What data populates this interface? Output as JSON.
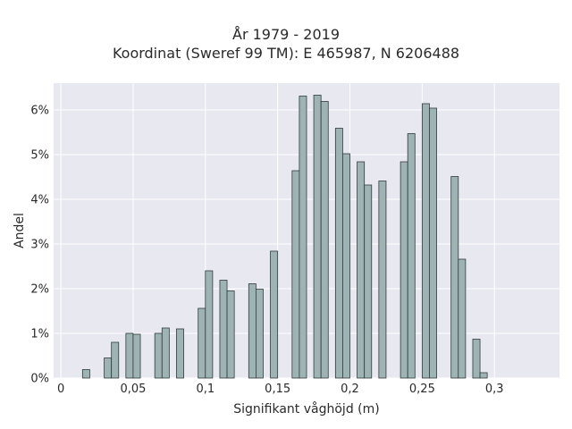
{
  "chart_data": {
    "type": "bar",
    "title": "År 1979 - 2019",
    "subtitle": "Koordinat (Sweref 99 TM): E 465987, N 6206488",
    "xlabel": "Signifikant våghöjd (m)",
    "ylabel": "Andel",
    "xlim": [
      -0.005,
      0.345
    ],
    "ylim": [
      0,
      0.066
    ],
    "bin_width": 0.005,
    "x_ticks": [
      0,
      0.05,
      0.1,
      0.15,
      0.2,
      0.25,
      0.3
    ],
    "x_tick_labels": [
      "0",
      "0,05",
      "0,1",
      "0,15",
      "0,2",
      "0,25",
      "0,3"
    ],
    "y_ticks": [
      0,
      0.01,
      0.02,
      0.03,
      0.04,
      0.05,
      0.06
    ],
    "y_tick_labels": [
      "0%",
      "1%",
      "2%",
      "3%",
      "4%",
      "5%",
      "6%"
    ],
    "grid": true,
    "colors": {
      "bar_fill": "#9eb4b4",
      "bar_edge": "#2f3b3b",
      "plot_bg": "#e8e8f0",
      "grid": "#ffffff"
    },
    "bins": [
      {
        "x": 0.0175,
        "value": 0.0019
      },
      {
        "x": 0.0325,
        "value": 0.0045
      },
      {
        "x": 0.0375,
        "value": 0.008
      },
      {
        "x": 0.0475,
        "value": 0.01
      },
      {
        "x": 0.0525,
        "value": 0.0098
      },
      {
        "x": 0.0675,
        "value": 0.01
      },
      {
        "x": 0.0725,
        "value": 0.0112
      },
      {
        "x": 0.0825,
        "value": 0.011
      },
      {
        "x": 0.0975,
        "value": 0.0156
      },
      {
        "x": 0.1025,
        "value": 0.024
      },
      {
        "x": 0.1125,
        "value": 0.0219
      },
      {
        "x": 0.1175,
        "value": 0.0195
      },
      {
        "x": 0.1325,
        "value": 0.0211
      },
      {
        "x": 0.1375,
        "value": 0.0199
      },
      {
        "x": 0.1475,
        "value": 0.0284
      },
      {
        "x": 0.1625,
        "value": 0.0464
      },
      {
        "x": 0.1675,
        "value": 0.0631
      },
      {
        "x": 0.1775,
        "value": 0.0633
      },
      {
        "x": 0.1825,
        "value": 0.0619
      },
      {
        "x": 0.1925,
        "value": 0.0559
      },
      {
        "x": 0.1975,
        "value": 0.0502
      },
      {
        "x": 0.2075,
        "value": 0.0484
      },
      {
        "x": 0.2125,
        "value": 0.0432
      },
      {
        "x": 0.2225,
        "value": 0.0441
      },
      {
        "x": 0.2375,
        "value": 0.0484
      },
      {
        "x": 0.2425,
        "value": 0.0547
      },
      {
        "x": 0.2525,
        "value": 0.0614
      },
      {
        "x": 0.2575,
        "value": 0.0604
      },
      {
        "x": 0.2725,
        "value": 0.0451
      },
      {
        "x": 0.2775,
        "value": 0.0266
      },
      {
        "x": 0.2875,
        "value": 0.0087
      },
      {
        "x": 0.2925,
        "value": 0.0012
      }
    ]
  }
}
